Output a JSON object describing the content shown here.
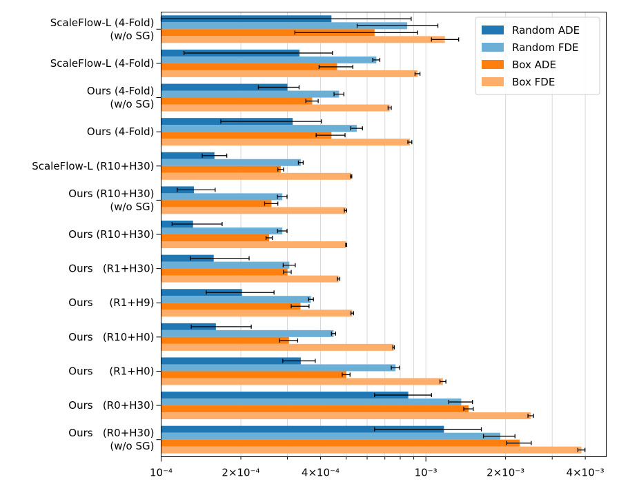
{
  "chart_data": {
    "type": "bar",
    "orientation": "horizontal",
    "x_scale": "log",
    "xlim": [
      0.0001,
      0.0048
    ],
    "grid": "x-major-and-minor",
    "legend_position": "top-right",
    "xtick_values": [
      0.0001,
      0.0002,
      0.0004,
      0.001,
      0.002,
      0.004
    ],
    "xtick_labels": [
      "10⁻⁴",
      "2×10⁻⁴",
      "4×10⁻⁴",
      "10⁻³",
      "2×10⁻³",
      "4×10⁻³"
    ],
    "categories": [
      [
        "ScaleFlow-L (4-Fold)",
        "(w/o SG)"
      ],
      [
        "ScaleFlow-L (4-Fold)"
      ],
      [
        "Ours (4-Fold)",
        "(w/o SG)"
      ],
      [
        "Ours (4-Fold)"
      ],
      [
        "ScaleFlow-L (R10+H30)"
      ],
      [
        "Ours (R10+H30)",
        "(w/o SG)"
      ],
      [
        "Ours (R10+H30)"
      ],
      [
        "Ours   (R1+H30)"
      ],
      [
        "Ours     (R1+H9)"
      ],
      [
        "Ours   (R10+H0)"
      ],
      [
        "Ours     (R1+H0)"
      ],
      [
        "Ours   (R0+H30)"
      ],
      [
        "Ours   (R0+H30)",
        "(w/o SG)"
      ]
    ],
    "series": [
      {
        "name": "Random ADE",
        "color": "#1f77b4",
        "values": [
          0.00044,
          0.000333,
          0.0003,
          0.000314,
          0.000159,
          0.000133,
          0.000132,
          0.000158,
          0.000202,
          0.000161,
          0.000337,
          0.000858,
          0.00117
        ],
        "err_low": [
          0.0001,
          0.000122,
          0.000233,
          0.000168,
          0.000143,
          0.000115,
          0.00011,
          0.000129,
          0.000148,
          0.00013,
          0.000288,
          0.00064,
          0.00064
        ],
        "err_high": [
          0.00088,
          0.000444,
          0.000332,
          0.000403,
          0.000177,
          0.00016,
          0.00017,
          0.000215,
          0.000267,
          0.000219,
          0.000382,
          0.00105,
          0.00162
        ]
      },
      {
        "name": "Random FDE",
        "color": "#6baed6",
        "values": [
          0.00085,
          0.00065,
          0.00047,
          0.000548,
          0.000337,
          0.000287,
          0.000287,
          0.000305,
          0.000368,
          0.000448,
          0.000768,
          0.00136,
          0.00191
        ],
        "err_low": [
          0.00055,
          0.00063,
          0.00045,
          0.00052,
          0.00033,
          0.000275,
          0.000275,
          0.000289,
          0.00036,
          0.00044,
          0.00074,
          0.00122,
          0.00165
        ],
        "err_high": [
          0.00111,
          0.00067,
          0.00049,
          0.000576,
          0.000344,
          0.000299,
          0.000299,
          0.000321,
          0.000376,
          0.000456,
          0.000796,
          0.0015,
          0.00217
        ]
      },
      {
        "name": "Box ADE",
        "color": "#ff7f0e",
        "values": [
          0.00064,
          0.000462,
          0.000372,
          0.00044,
          0.000283,
          0.000261,
          0.000256,
          0.0003,
          0.000336,
          0.000304,
          0.0005,
          0.00145,
          0.00226
        ],
        "err_low": [
          0.00032,
          0.000395,
          0.000352,
          0.000385,
          0.000276,
          0.000246,
          0.000249,
          0.00029,
          0.00031,
          0.00028,
          0.000483,
          0.00139,
          0.00202
        ],
        "err_high": [
          0.00093,
          0.00053,
          0.000392,
          0.000495,
          0.00029,
          0.000276,
          0.000263,
          0.00031,
          0.000362,
          0.000328,
          0.000517,
          0.00151,
          0.0025
        ]
      },
      {
        "name": "Box FDE",
        "color": "#fdae6b",
        "values": [
          0.00118,
          0.00093,
          0.00073,
          0.00087,
          0.000522,
          0.000497,
          0.0005,
          0.000468,
          0.000527,
          0.000755,
          0.00116,
          0.00249,
          0.00387
        ],
        "err_low": [
          0.00105,
          0.00091,
          0.00072,
          0.000855,
          0.000519,
          0.000492,
          0.000498,
          0.000463,
          0.000521,
          0.00075,
          0.00113,
          0.00243,
          0.00375
        ],
        "err_high": [
          0.00133,
          0.00095,
          0.00074,
          0.000885,
          0.000525,
          0.000502,
          0.000502,
          0.000473,
          0.000533,
          0.00076,
          0.00119,
          0.00255,
          0.00399
        ]
      }
    ]
  }
}
